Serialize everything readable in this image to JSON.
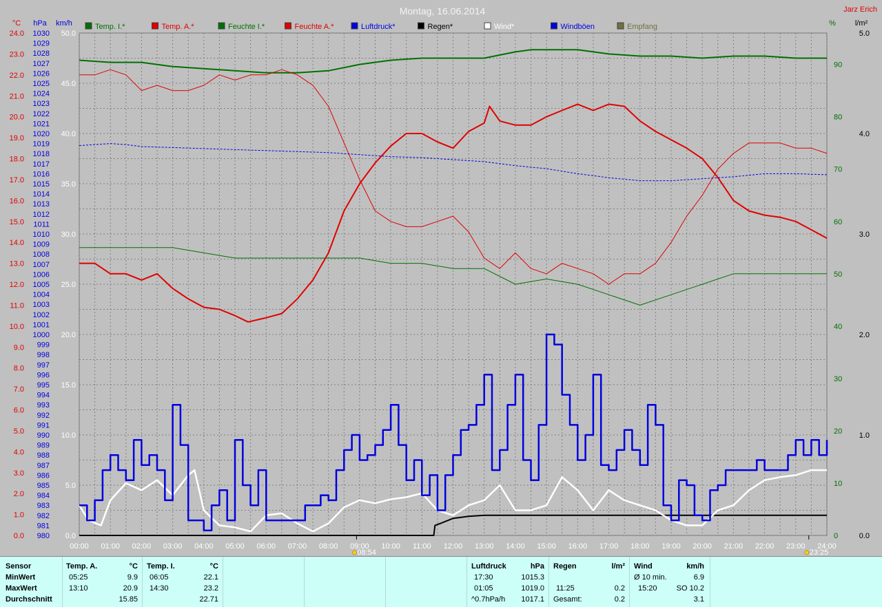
{
  "title": "Montag, 16.06.2014",
  "author": "Jarz Erich",
  "colors": {
    "background": "#c0c0c0",
    "grid": "#808080",
    "temp": "#e00000",
    "humidity": "#007000",
    "pressure": "#0000e0",
    "rain": "#000000",
    "wind": "#ffffff",
    "gust": "#0000e0",
    "reception": "#707040",
    "stats_bg": "#ccfff8"
  },
  "chart_data": {
    "type": "line",
    "title": "Montag, 16.06.2014",
    "x_ticks": [
      "00:00",
      "01:00",
      "02:00",
      "03:00",
      "04:00",
      "05:00",
      "06:00",
      "07:00",
      "08:00",
      "09:00",
      "10:00",
      "11:00",
      "12:00",
      "13:00",
      "14:00",
      "15:00",
      "16:00",
      "17:00",
      "18:00",
      "19:00",
      "20:00",
      "21:00",
      "22:00",
      "23:00",
      "24:00"
    ],
    "markers": [
      {
        "label": "08:54",
        "hour": 8.9,
        "icon": "sunrise-icon"
      },
      {
        "label": "23:25",
        "hour": 23.42,
        "icon": "moon-icon"
      }
    ],
    "axes": {
      "temp": {
        "label": "°C",
        "min": 0,
        "max": 24,
        "step": 1
      },
      "pressure": {
        "label": "hPa",
        "min": 980,
        "max": 1030,
        "step": 1
      },
      "wind": {
        "label": "km/h",
        "min": 0,
        "max": 50,
        "step": 5
      },
      "humidity": {
        "label": "%",
        "min": 0,
        "max": 96,
        "ticks": [
          0,
          10,
          20,
          30,
          40,
          50,
          60,
          70,
          80,
          90
        ]
      },
      "rain": {
        "label": "l/m²",
        "min": 0,
        "max": 5,
        "step": 1
      }
    },
    "legend": [
      {
        "name": "Temp. I.*",
        "color": "#007000"
      },
      {
        "name": "Temp. A.*",
        "color": "#e00000"
      },
      {
        "name": "Feuchte I.*",
        "color": "#007000"
      },
      {
        "name": "Feuchte A.*",
        "color": "#e00000"
      },
      {
        "name": "Luftdruck*",
        "color": "#0000e0"
      },
      {
        "name": "Regen*",
        "color": "#000000"
      },
      {
        "name": "Wind*",
        "color": "#ffffff"
      },
      {
        "name": "Windböen",
        "color": "#0000e0"
      },
      {
        "name": "Empfang",
        "color": "#707040"
      }
    ],
    "series": [
      {
        "name": "Temp. A.*",
        "axis": "temp",
        "color": "#e00000",
        "width": 2,
        "x": [
          0,
          0.5,
          1,
          1.5,
          2,
          2.5,
          3,
          3.5,
          4,
          4.5,
          5,
          5.42,
          6,
          6.5,
          7,
          7.5,
          8,
          8.5,
          9,
          9.5,
          10,
          10.5,
          11,
          11.5,
          12,
          12.5,
          13,
          13.17,
          13.5,
          14,
          14.5,
          15,
          15.5,
          16,
          16.5,
          17,
          17.5,
          18,
          18.5,
          19,
          19.5,
          20,
          20.5,
          21,
          21.5,
          22,
          22.5,
          23,
          23.5,
          24
        ],
        "y": [
          13.0,
          13.0,
          12.5,
          12.5,
          12.2,
          12.5,
          11.8,
          11.3,
          10.9,
          10.8,
          10.5,
          10.2,
          10.4,
          10.6,
          11.3,
          12.2,
          13.5,
          15.5,
          16.8,
          17.8,
          18.6,
          19.2,
          19.2,
          18.8,
          18.5,
          19.3,
          19.7,
          20.5,
          19.8,
          19.6,
          19.6,
          20.0,
          20.3,
          20.6,
          20.3,
          20.6,
          20.5,
          19.8,
          19.3,
          18.9,
          18.5,
          18.0,
          17.1,
          16.0,
          15.5,
          15.3,
          15.2,
          15.0,
          14.6,
          14.2
        ]
      },
      {
        "name": "Temp. I.*",
        "axis": "temp",
        "color": "#007000",
        "width": 2,
        "x": [
          0,
          1,
          2,
          3,
          4,
          5,
          6,
          6.08,
          7,
          8,
          9,
          10,
          11,
          12,
          13,
          14,
          14.5,
          15,
          16,
          17,
          18,
          19,
          20,
          21,
          22,
          23,
          24
        ],
        "y": [
          22.7,
          22.6,
          22.6,
          22.4,
          22.3,
          22.2,
          22.1,
          22.1,
          22.1,
          22.2,
          22.5,
          22.7,
          22.8,
          22.8,
          22.8,
          23.1,
          23.2,
          23.2,
          23.2,
          23.0,
          22.9,
          22.9,
          22.8,
          22.9,
          22.9,
          22.8,
          22.8
        ]
      },
      {
        "name": "Feuchte A.*",
        "axis": "humidity",
        "color": "#e00000",
        "width": 1,
        "x": [
          0,
          0.5,
          1,
          1.5,
          2,
          2.5,
          3,
          3.5,
          4,
          4.5,
          5,
          5.5,
          6,
          6.5,
          7,
          7.5,
          8,
          8.5,
          9,
          9.5,
          10,
          10.5,
          11,
          11.5,
          12,
          12.5,
          13,
          13.5,
          14,
          14.5,
          15,
          15.5,
          16,
          16.5,
          17,
          17.5,
          18,
          18.5,
          19,
          19.5,
          20,
          20.5,
          21,
          21.5,
          22,
          22.5,
          23,
          23.5,
          24
        ],
        "y": [
          88,
          88,
          89,
          88,
          85,
          86,
          85,
          85,
          86,
          88,
          87,
          88,
          88,
          89,
          88,
          86,
          82,
          75,
          68,
          62,
          60,
          59,
          59,
          60,
          61,
          58,
          53,
          51,
          54,
          51,
          50,
          52,
          51,
          50,
          48,
          50,
          50,
          52,
          56,
          61,
          65,
          70,
          73,
          75,
          75,
          75,
          74,
          74,
          73
        ]
      },
      {
        "name": "Feuchte I.*",
        "axis": "humidity",
        "color": "#007000",
        "width": 1,
        "x": [
          0,
          1,
          2,
          3,
          4,
          5,
          6,
          7,
          8,
          9,
          10,
          11,
          12,
          13,
          14,
          15,
          16,
          17,
          18,
          19,
          20,
          21,
          22,
          23,
          24
        ],
        "y": [
          55,
          55,
          55,
          55,
          54,
          53,
          53,
          53,
          53,
          53,
          52,
          52,
          51,
          51,
          48,
          49,
          48,
          46,
          44,
          46,
          48,
          50,
          50,
          50,
          50
        ]
      },
      {
        "name": "Luftdruck*",
        "axis": "pressure",
        "color": "#0000e0",
        "width": 1,
        "dash": "3,2",
        "x": [
          0,
          0.5,
          1,
          1.5,
          2,
          3,
          4,
          5,
          6,
          7,
          8,
          9,
          10,
          11,
          12,
          13,
          14,
          15,
          16,
          17,
          18,
          19,
          20,
          21,
          22,
          23,
          24
        ],
        "y": [
          1018.8,
          1018.9,
          1019.0,
          1018.9,
          1018.7,
          1018.6,
          1018.5,
          1018.4,
          1018.3,
          1018.2,
          1018.1,
          1017.9,
          1017.7,
          1017.6,
          1017.4,
          1017.2,
          1016.8,
          1016.5,
          1016.0,
          1015.6,
          1015.3,
          1015.3,
          1015.5,
          1015.7,
          1016.0,
          1016.0,
          1015.9
        ]
      },
      {
        "name": "Regen*",
        "axis": "rain",
        "color": "#000000",
        "width": 2,
        "x": [
          0,
          11.38,
          11.42,
          11.6,
          12.0,
          12.5,
          13,
          24
        ],
        "y": [
          0,
          0,
          0.1,
          0.12,
          0.17,
          0.19,
          0.2,
          0.2
        ]
      },
      {
        "name": "Wind*",
        "axis": "wind",
        "color": "#ffffff",
        "width": 2.5,
        "x": [
          0,
          0.3,
          0.7,
          1.0,
          1.5,
          2.0,
          2.5,
          3.0,
          3.5,
          3.7,
          4.0,
          4.5,
          5.0,
          5.5,
          6.0,
          6.5,
          7.0,
          7.5,
          8.0,
          8.5,
          9.0,
          9.5,
          10.0,
          10.5,
          11.0,
          11.5,
          12.0,
          12.5,
          13.0,
          13.5,
          14.0,
          14.5,
          15.0,
          15.5,
          16.0,
          16.5,
          17.0,
          17.5,
          18.0,
          18.5,
          19.0,
          19.5,
          20.0,
          20.5,
          21.0,
          21.5,
          22.0,
          22.5,
          23.0,
          23.5,
          24.0
        ],
        "y": [
          3.0,
          1.5,
          1.0,
          3.5,
          5.2,
          4.5,
          5.5,
          4.0,
          6.0,
          6.5,
          2.5,
          1.0,
          0.8,
          0.4,
          2.0,
          2.2,
          1.2,
          0.4,
          1.2,
          2.8,
          3.5,
          3.2,
          3.6,
          3.8,
          4.2,
          2.5,
          2.0,
          3.0,
          3.5,
          5.0,
          2.5,
          2.5,
          3.0,
          5.8,
          4.5,
          2.5,
          4.5,
          3.5,
          3.0,
          2.5,
          1.5,
          1.0,
          1.0,
          2.5,
          3.0,
          4.5,
          5.5,
          5.8,
          6.0,
          6.5,
          6.5
        ]
      },
      {
        "name": "Windböen",
        "axis": "wind",
        "color": "#0000e0",
        "width": 2.5,
        "step": true,
        "x": [
          0,
          0.25,
          0.5,
          0.75,
          1.0,
          1.25,
          1.5,
          1.75,
          2.0,
          2.25,
          2.5,
          2.75,
          3.0,
          3.25,
          3.5,
          3.75,
          4.0,
          4.25,
          4.5,
          4.75,
          5.0,
          5.25,
          5.5,
          5.75,
          6.0,
          6.25,
          6.5,
          6.75,
          7.0,
          7.25,
          7.5,
          7.75,
          8.0,
          8.25,
          8.5,
          8.75,
          9.0,
          9.25,
          9.5,
          9.75,
          10.0,
          10.25,
          10.5,
          10.75,
          11.0,
          11.25,
          11.5,
          11.75,
          12.0,
          12.25,
          12.5,
          12.75,
          13.0,
          13.25,
          13.5,
          13.75,
          14.0,
          14.25,
          14.5,
          14.75,
          15.0,
          15.25,
          15.5,
          15.75,
          16.0,
          16.25,
          16.5,
          16.75,
          17.0,
          17.25,
          17.5,
          17.75,
          18.0,
          18.25,
          18.5,
          18.75,
          19.0,
          19.25,
          19.5,
          19.75,
          20.0,
          20.25,
          20.5,
          20.75,
          21.0,
          21.25,
          21.5,
          21.75,
          22.0,
          22.25,
          22.5,
          22.75,
          23.0,
          23.25,
          23.5,
          23.75,
          24.0
        ],
        "y": [
          3.0,
          1.5,
          3.5,
          6.5,
          8.0,
          6.5,
          5.5,
          9.5,
          7.0,
          8.0,
          6.5,
          3.5,
          13.0,
          9.0,
          1.5,
          1.5,
          0.5,
          3.0,
          4.5,
          1.5,
          9.5,
          5.0,
          3.0,
          6.5,
          1.5,
          1.5,
          1.5,
          1.5,
          1.5,
          3.0,
          3.0,
          4.0,
          3.5,
          6.5,
          8.5,
          10.0,
          7.5,
          8.0,
          9.0,
          10.5,
          13.0,
          9.0,
          5.5,
          7.5,
          4.0,
          6.0,
          2.5,
          6.0,
          8.0,
          10.5,
          11.0,
          13.0,
          16.0,
          6.5,
          8.5,
          13.0,
          16.0,
          7.5,
          5.5,
          11.0,
          20.0,
          19.0,
          14.0,
          11.0,
          7.5,
          10.0,
          16.0,
          7.0,
          6.5,
          8.5,
          10.5,
          8.5,
          7.0,
          13.0,
          11.0,
          3.0,
          1.5,
          5.5,
          5.0,
          2.0,
          1.5,
          4.5,
          5.0,
          6.5,
          6.5,
          6.5,
          6.5,
          7.5,
          6.5,
          6.5,
          6.5,
          8.0,
          9.5,
          8.0,
          9.5,
          8.0,
          9.5
        ]
      }
    ]
  },
  "stats": {
    "sensor": {
      "header": "Sensor",
      "rows": [
        "MinWert",
        "MaxWert",
        "Durchschnitt"
      ]
    },
    "temp_a": {
      "header": "Temp. A.",
      "unit": "°C",
      "times": [
        "05:25",
        "13:10",
        ""
      ],
      "values": [
        "9.9",
        "20.9",
        "15.85"
      ]
    },
    "temp_i": {
      "header": "Temp. I.",
      "unit": "°C",
      "times": [
        "06:05",
        "14:30",
        ""
      ],
      "values": [
        "22.1",
        "23.2",
        "22.71"
      ]
    },
    "pressure": {
      "header": "Luftdruck",
      "unit": "hPa",
      "times": [
        "17:30",
        "01:05",
        "^0.7hPa/h"
      ],
      "values": [
        "1015.3",
        "1019.0",
        "1017.1"
      ]
    },
    "rain": {
      "header": "Regen",
      "unit": "l/m²",
      "times": [
        "",
        "11:25",
        "Gesamt:"
      ],
      "values": [
        "",
        "0.2",
        "0.2"
      ]
    },
    "wind": {
      "header": "Wind",
      "unit": "km/h",
      "times": [
        "Ø 10 min.",
        "15:20",
        ""
      ],
      "values": [
        "6.9",
        "SO 10.2",
        "3.1"
      ]
    }
  }
}
